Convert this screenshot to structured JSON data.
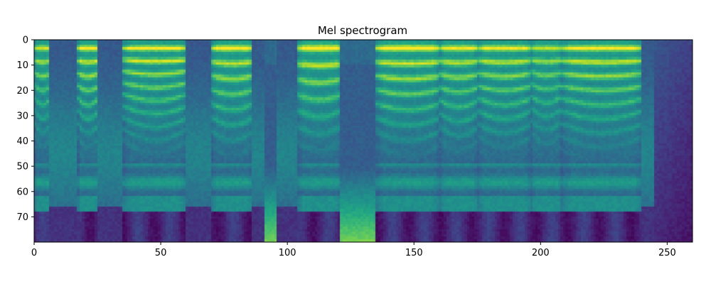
{
  "chart_data": {
    "type": "heatmap",
    "title": "Mel spectrogram",
    "xlabel": "",
    "ylabel": "",
    "xlim": [
      0,
      260
    ],
    "ylim": [
      80,
      0
    ],
    "x_ticks": [
      "0",
      "50",
      "100",
      "150",
      "200",
      "250"
    ],
    "y_ticks": [
      "0",
      "10",
      "20",
      "30",
      "40",
      "50",
      "60",
      "70"
    ],
    "colormap": "viridis",
    "n_frames": 260,
    "n_mels": 80,
    "segments": [
      {
        "start": 0,
        "end": 6,
        "kind": "voiced",
        "f0_bin": 5,
        "level": 0.75
      },
      {
        "start": 6,
        "end": 17,
        "kind": "quiet",
        "level": 0.45
      },
      {
        "start": 17,
        "end": 25,
        "kind": "voiced",
        "f0_bin": 5,
        "level": 0.9
      },
      {
        "start": 25,
        "end": 35,
        "kind": "quiet",
        "level": 0.4
      },
      {
        "start": 35,
        "end": 60,
        "kind": "voiced",
        "f0_bin": 4.6,
        "level": 0.9
      },
      {
        "start": 60,
        "end": 70,
        "kind": "quiet",
        "level": 0.35
      },
      {
        "start": 70,
        "end": 86,
        "kind": "voiced",
        "f0_bin": 5.5,
        "level": 0.9
      },
      {
        "start": 86,
        "end": 96,
        "kind": "quiet",
        "level": 0.4
      },
      {
        "start": 91,
        "end": 97,
        "kind": "fricative",
        "level": 0.75
      },
      {
        "start": 96,
        "end": 104,
        "kind": "quiet",
        "level": 0.4
      },
      {
        "start": 104,
        "end": 121,
        "kind": "voiced",
        "f0_bin": 6.2,
        "level": 0.9
      },
      {
        "start": 121,
        "end": 135,
        "kind": "fricative",
        "level": 0.7
      },
      {
        "start": 135,
        "end": 160,
        "kind": "voiced",
        "f0_bin": 5.5,
        "level": 0.95
      },
      {
        "start": 160,
        "end": 175,
        "kind": "voiced",
        "f0_bin": 5.2,
        "level": 0.85
      },
      {
        "start": 175,
        "end": 196,
        "kind": "voiced",
        "f0_bin": 5.0,
        "level": 0.85
      },
      {
        "start": 196,
        "end": 208,
        "kind": "voiced",
        "f0_bin": 4.8,
        "level": 0.7
      },
      {
        "start": 208,
        "end": 240,
        "kind": "voiced",
        "f0_bin": 5.0,
        "level": 0.9
      },
      {
        "start": 240,
        "end": 245,
        "kind": "quiet",
        "level": 0.45
      },
      {
        "start": 245,
        "end": 260,
        "kind": "silence",
        "level": 0.15
      }
    ]
  }
}
